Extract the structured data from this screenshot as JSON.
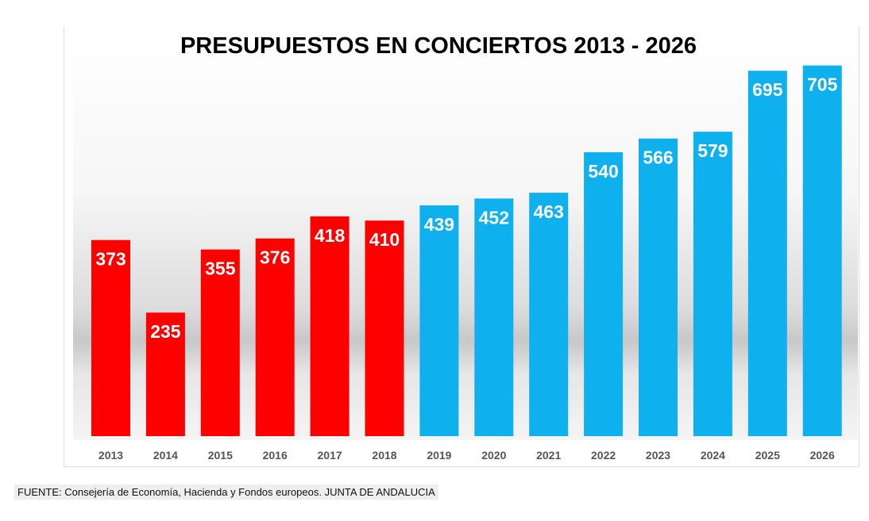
{
  "chart_data": {
    "type": "bar",
    "title": "PRESUPUESTOS EN CONCIERTOS 2013 - 2026",
    "categories": [
      "2013",
      "2014",
      "2015",
      "2016",
      "2017",
      "2018",
      "2019",
      "2020",
      "2021",
      "2022",
      "2023",
      "2024",
      "2025",
      "2026"
    ],
    "values": [
      373,
      235,
      355,
      376,
      418,
      410,
      439,
      452,
      463,
      540,
      566,
      579,
      695,
      705
    ],
    "colors": [
      "#ff0000",
      "#ff0000",
      "#ff0000",
      "#ff0000",
      "#ff0000",
      "#ff0000",
      "#0fb0ee",
      "#0fb0ee",
      "#0fb0ee",
      "#0fb0ee",
      "#0fb0ee",
      "#0fb0ee",
      "#0fb0ee",
      "#0fb0ee"
    ],
    "xlabel": "",
    "ylabel": "",
    "ylim": [
      0,
      750
    ],
    "grid": false,
    "legend": "none",
    "data_labels": true
  },
  "source": "FUENTE: Consejería de Economía, Hacienda y Fondos europeos. JUNTA DE ANDALUCIA"
}
